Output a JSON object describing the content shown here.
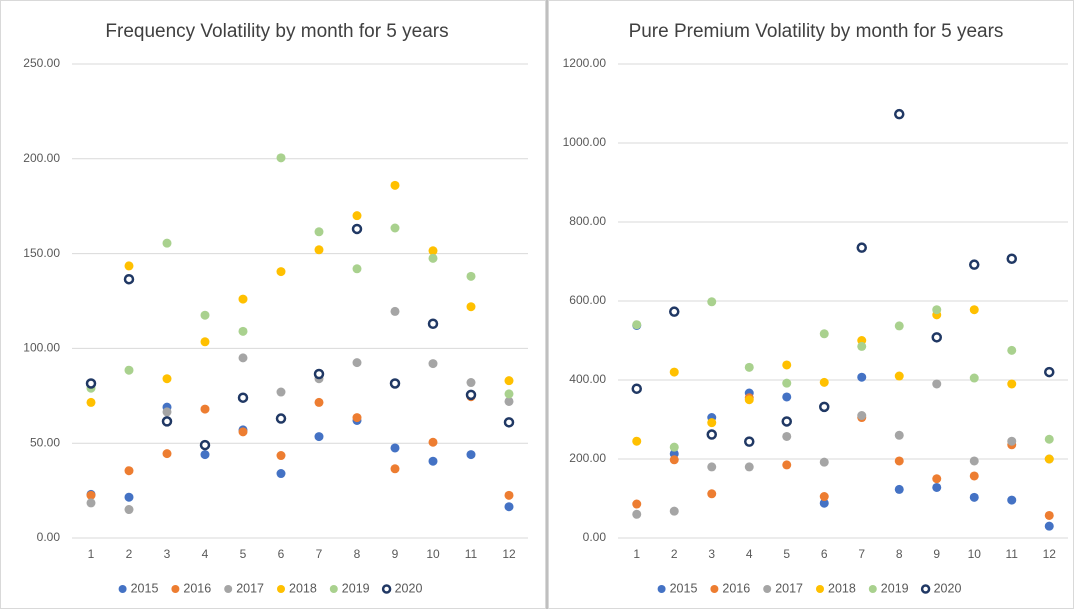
{
  "chart_data": [
    {
      "type": "scatter",
      "title": "Frequency Volatility by month for 5 years",
      "x": [
        1,
        2,
        3,
        4,
        5,
        6,
        7,
        8,
        9,
        10,
        11,
        12
      ],
      "xlim": [
        0.5,
        12.5
      ],
      "xticks": [
        1,
        2,
        3,
        4,
        5,
        6,
        7,
        8,
        9,
        10,
        11,
        12
      ],
      "ylim": [
        0,
        250
      ],
      "yticks": [
        {
          "value": 0,
          "label": "0.00"
        },
        {
          "value": 50,
          "label": "50.00"
        },
        {
          "value": 100,
          "label": "100.00"
        },
        {
          "value": 150,
          "label": "150.00"
        },
        {
          "value": 200,
          "label": "200.00"
        },
        {
          "value": 250,
          "label": "250.00"
        }
      ],
      "grid": true,
      "legend": "bottom",
      "series": [
        {
          "name": "2015",
          "color": "#4472c4",
          "values": [
            23,
            21.5,
            69,
            44,
            57,
            34,
            53.5,
            62,
            47.5,
            40.5,
            44,
            16.5
          ]
        },
        {
          "name": "2016",
          "color": "#ed7d31",
          "values": [
            22.5,
            35.5,
            44.5,
            68,
            56,
            43.5,
            71.5,
            63.5,
            36.5,
            50.5,
            74.5,
            22.5
          ]
        },
        {
          "name": "2017",
          "color": "#a5a5a5",
          "values": [
            18.5,
            15,
            66.5,
            49,
            95,
            77,
            84,
            92.5,
            119.5,
            92,
            82,
            72
          ]
        },
        {
          "name": "2018",
          "color": "#ffc000",
          "values": [
            71.5,
            143.5,
            84,
            103.5,
            126,
            140.5,
            152,
            170,
            186,
            151.5,
            122,
            83
          ]
        },
        {
          "name": "2019",
          "color": "#a9d18e",
          "values": [
            79,
            88.5,
            155.5,
            117.5,
            109,
            200.5,
            161.5,
            142,
            163.5,
            147.5,
            138,
            76
          ]
        },
        {
          "name": "2020",
          "color": "#203864",
          "hollow": true,
          "values": [
            81.5,
            136.5,
            61.5,
            49,
            74,
            63,
            86.5,
            163,
            81.5,
            113,
            75.5,
            61
          ]
        }
      ]
    },
    {
      "type": "scatter",
      "title": "Pure Premium Volatility by month for 5 years",
      "x": [
        1,
        2,
        3,
        4,
        5,
        6,
        7,
        8,
        9,
        10,
        11,
        12
      ],
      "xlim": [
        0.5,
        12.5
      ],
      "xticks": [
        1,
        2,
        3,
        4,
        5,
        6,
        7,
        8,
        9,
        10,
        11,
        12
      ],
      "ylim": [
        0,
        1200
      ],
      "yticks": [
        {
          "value": 0,
          "label": "0.00"
        },
        {
          "value": 200,
          "label": "200.00"
        },
        {
          "value": 400,
          "label": "400.00"
        },
        {
          "value": 600,
          "label": "600.00"
        },
        {
          "value": 800,
          "label": "800.00"
        },
        {
          "value": 1000,
          "label": "1000.00"
        },
        {
          "value": 1200,
          "label": "1200.00"
        }
      ],
      "grid": true,
      "legend": "bottom",
      "series": [
        {
          "name": "2015",
          "color": "#4472c4",
          "values": [
            538,
            213,
            305,
            367,
            357,
            88,
            407,
            123,
            128,
            103,
            96,
            30
          ]
        },
        {
          "name": "2016",
          "color": "#ed7d31",
          "values": [
            86,
            198,
            112,
            355,
            185,
            105,
            305,
            195,
            150,
            157,
            236,
            57
          ]
        },
        {
          "name": "2017",
          "color": "#a5a5a5",
          "values": [
            60,
            68,
            180,
            180,
            257,
            192,
            310,
            260,
            390,
            195,
            245,
            200
          ]
        },
        {
          "name": "2018",
          "color": "#ffc000",
          "values": [
            245,
            420,
            292,
            350,
            438,
            394,
            500,
            410,
            565,
            578,
            390,
            200
          ]
        },
        {
          "name": "2019",
          "color": "#a9d18e",
          "values": [
            540,
            230,
            598,
            432,
            392,
            517,
            485,
            537,
            578,
            405,
            475,
            250
          ]
        },
        {
          "name": "2020",
          "color": "#203864",
          "hollow": true,
          "values": [
            378,
            573,
            262,
            244,
            295,
            332,
            735,
            1073,
            508,
            692,
            707,
            420
          ]
        }
      ]
    }
  ]
}
